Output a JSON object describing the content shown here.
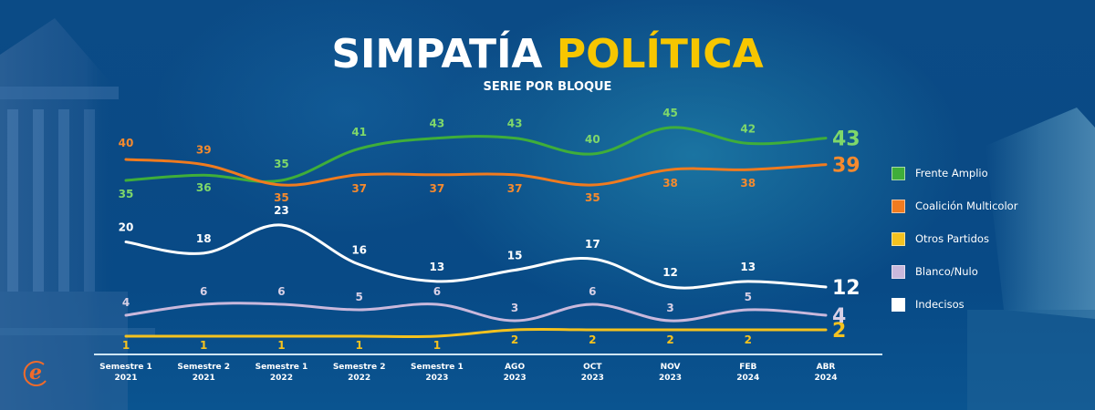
{
  "header": {
    "title_main": "SIMPATÍA",
    "title_accent": "POLÍTICA",
    "subtitle": "SERIE POR BLOQUE"
  },
  "colors": {
    "background": "#0a4a85",
    "title_accent": "#f7c600",
    "axis_line": "#cfe6f5"
  },
  "logo": {
    "icon": "e-logo-icon",
    "color": "#f26b2a"
  },
  "chart_data": {
    "type": "line",
    "title": "SIMPATÍA POLÍTICA",
    "subtitle": "SERIE POR BLOQUE",
    "xlabel": "",
    "ylabel": "",
    "categories": [
      [
        "Semestre 1",
        "2021"
      ],
      [
        "Semestre 2",
        "2021"
      ],
      [
        "Semestre 1",
        "2022"
      ],
      [
        "Semestre 2",
        "2022"
      ],
      [
        "Semestre 1",
        "2023"
      ],
      [
        "AGO",
        "2023"
      ],
      [
        "OCT",
        "2023"
      ],
      [
        "NOV",
        "2023"
      ],
      [
        "FEB",
        "2024"
      ],
      [
        "ABR",
        "2024"
      ]
    ],
    "grid": false,
    "legend_position": "right",
    "series": [
      {
        "name": "Frente Amplio",
        "color": "#3fae3a",
        "label_color": "#7fd86a",
        "values": [
          35,
          36,
          35,
          41,
          43,
          43,
          40,
          45,
          42,
          43
        ]
      },
      {
        "name": "Coalición Multicolor",
        "color": "#f07b1f",
        "label_color": "#f58a2e",
        "values": [
          40,
          39,
          35,
          37,
          37,
          37,
          35,
          38,
          38,
          39
        ]
      },
      {
        "name": "Otros Partidos",
        "color": "#f4c21f",
        "label_color": "#f4c21f",
        "values": [
          1,
          1,
          1,
          1,
          1,
          2,
          2,
          2,
          2,
          2
        ]
      },
      {
        "name": "Blanco/Nulo",
        "color": "#c9b8dc",
        "label_color": "#d8d0e6",
        "values": [
          4,
          6,
          6,
          5,
          6,
          3,
          6,
          3,
          5,
          4
        ]
      },
      {
        "name": "Indecisos",
        "color": "#ffffff",
        "label_color": "#ffffff",
        "values": [
          20,
          18,
          23,
          16,
          13,
          15,
          17,
          12,
          13,
          12
        ]
      }
    ]
  }
}
